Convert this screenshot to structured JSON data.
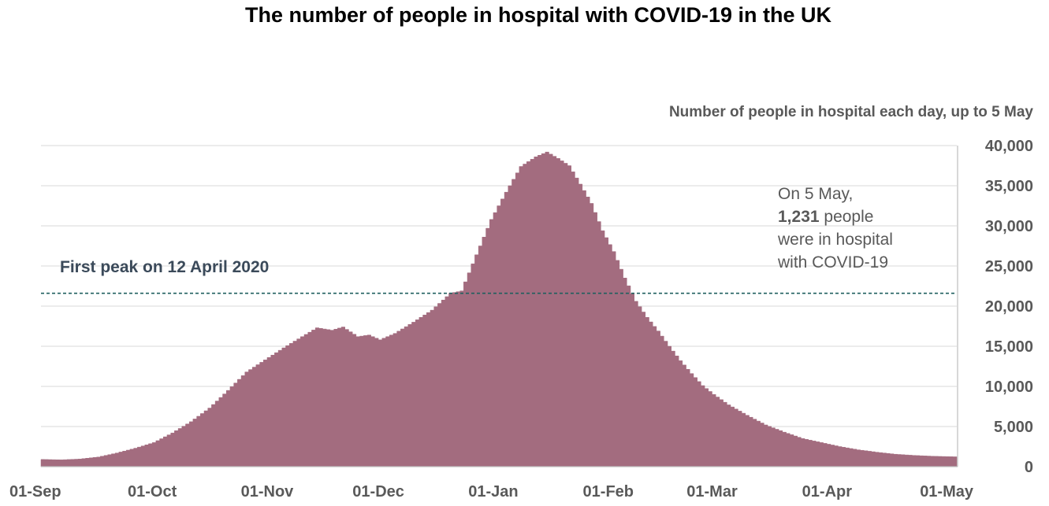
{
  "colors": {
    "area": "#a36c7f",
    "gridline": "#d9d9d9",
    "axis": "#bfbfbf",
    "peak_line": "#1f5f5f",
    "text": "#595959"
  },
  "chart_data": {
    "type": "area",
    "title": "The number of people in hospital with COVID-19 in the UK",
    "subtitle": "Number of people in hospital each day, up to 5 May",
    "ylim": [
      0,
      40000
    ],
    "yticks": [
      0,
      5000,
      10000,
      15000,
      20000,
      25000,
      30000,
      35000,
      40000
    ],
    "ytick_labels": [
      "0",
      "5,000",
      "10,000",
      "15,000",
      "20,000",
      "25,000",
      "30,000",
      "35,000",
      "40,000"
    ],
    "xlim_days": [
      0,
      247
    ],
    "xticks": [
      {
        "label": "01-Sep",
        "day": 0
      },
      {
        "label": "01-Oct",
        "day": 30
      },
      {
        "label": "01-Nov",
        "day": 61
      },
      {
        "label": "01-Dec",
        "day": 91
      },
      {
        "label": "01-Jan",
        "day": 122
      },
      {
        "label": "01-Feb",
        "day": 153
      },
      {
        "label": "01-Mar",
        "day": 181
      },
      {
        "label": "01-Apr",
        "day": 212
      },
      {
        "label": "01-May",
        "day": 242
      }
    ],
    "series": [
      {
        "name": "People in hospital",
        "points": [
          [
            0,
            900
          ],
          [
            5,
            850
          ],
          [
            10,
            950
          ],
          [
            15,
            1200
          ],
          [
            20,
            1700
          ],
          [
            25,
            2300
          ],
          [
            30,
            3000
          ],
          [
            35,
            4200
          ],
          [
            40,
            5600
          ],
          [
            45,
            7300
          ],
          [
            50,
            9500
          ],
          [
            55,
            11800
          ],
          [
            60,
            13300
          ],
          [
            65,
            14800
          ],
          [
            70,
            16200
          ],
          [
            74,
            17300
          ],
          [
            78,
            17000
          ],
          [
            81,
            17400
          ],
          [
            85,
            16200
          ],
          [
            88,
            16400
          ],
          [
            91,
            15800
          ],
          [
            95,
            16600
          ],
          [
            100,
            18000
          ],
          [
            105,
            19500
          ],
          [
            110,
            21600
          ],
          [
            113,
            21900
          ],
          [
            117,
            26400
          ],
          [
            121,
            30800
          ],
          [
            125,
            34200
          ],
          [
            129,
            37400
          ],
          [
            133,
            38600
          ],
          [
            136,
            39200
          ],
          [
            139,
            38400
          ],
          [
            142,
            37500
          ],
          [
            145,
            35200
          ],
          [
            148,
            32800
          ],
          [
            151,
            29400
          ],
          [
            154,
            26800
          ],
          [
            157,
            23500
          ],
          [
            160,
            20600
          ],
          [
            163,
            18600
          ],
          [
            166,
            16900
          ],
          [
            169,
            15000
          ],
          [
            172,
            13200
          ],
          [
            175,
            11600
          ],
          [
            178,
            10100
          ],
          [
            181,
            9000
          ],
          [
            185,
            7700
          ],
          [
            190,
            6400
          ],
          [
            195,
            5200
          ],
          [
            200,
            4300
          ],
          [
            205,
            3500
          ],
          [
            210,
            3000
          ],
          [
            215,
            2500
          ],
          [
            220,
            2100
          ],
          [
            225,
            1800
          ],
          [
            230,
            1550
          ],
          [
            235,
            1400
          ],
          [
            240,
            1300
          ],
          [
            246,
            1231
          ]
        ]
      }
    ],
    "annotations": {
      "first_peak": {
        "label": "First peak on 12 April 2020",
        "value": 21600
      },
      "latest": {
        "line1": "On 5 May,",
        "value": "1,231",
        "line2_suffix": " people",
        "line3": "were in hospital",
        "line4": "with COVID-19"
      }
    }
  }
}
